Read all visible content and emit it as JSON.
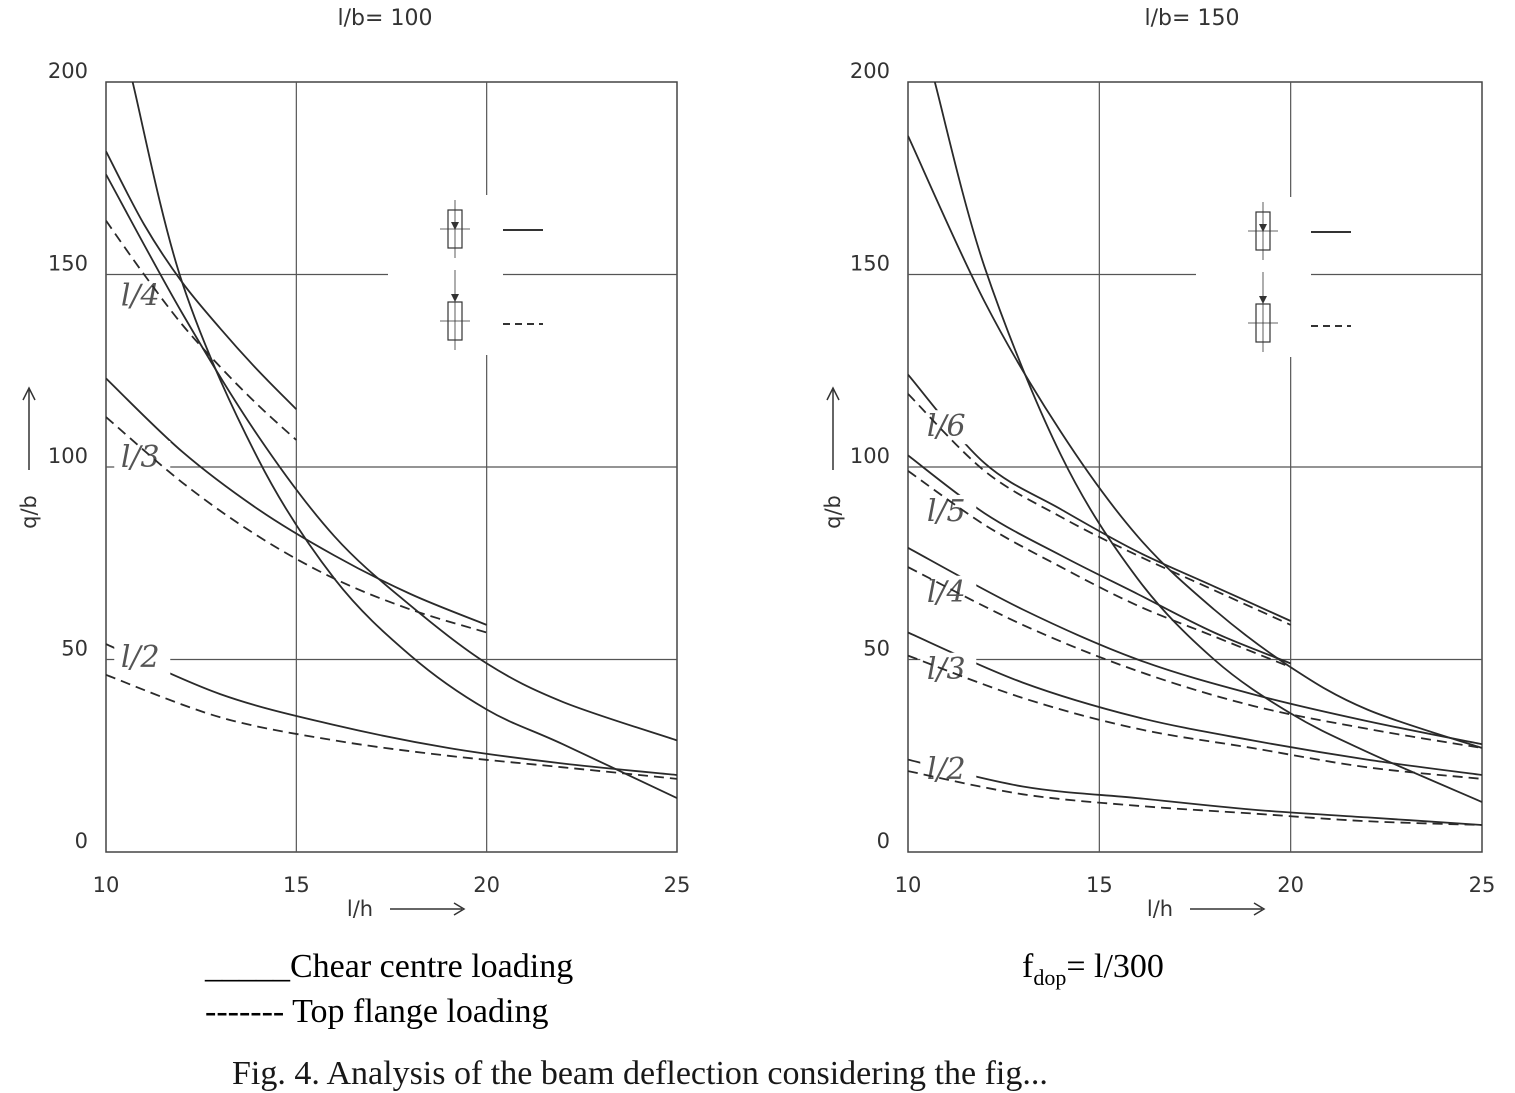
{
  "legend": {
    "solid_label": "_____Chear centre loading",
    "dashed_label": "------- Top flange loading",
    "fdop_prefix": "f",
    "fdop_sub": "dop",
    "fdop_suffix": "= l/300"
  },
  "figure_caption": "Fig. 4. Analysis of the beam deflection considering the fig...",
  "chart_data": [
    {
      "type": "line",
      "title": "l/b= 100",
      "xlabel": "l/h",
      "ylabel": "q/b",
      "xlim": [
        10,
        25
      ],
      "ylim": [
        0,
        200
      ],
      "xticks": [
        "10",
        "15",
        "20",
        "25"
      ],
      "yticks": [
        "0",
        "50",
        "100",
        "150",
        "200"
      ],
      "grid": true,
      "legend_position": "top-right",
      "series": [
        {
          "label": "l/4",
          "style": "solid",
          "points": [
            [
              10.0,
              182
            ],
            [
              11.0,
              163
            ],
            [
              12.0,
              148
            ],
            [
              13.0,
              136
            ],
            [
              14.0,
              125
            ],
            [
              15.0,
              115
            ]
          ]
        },
        {
          "label": "l/4",
          "style": "dashed",
          "points": [
            [
              10.0,
              164
            ],
            [
              11.0,
              150
            ],
            [
              12.0,
              137
            ],
            [
              13.0,
              126
            ],
            [
              14.0,
              116
            ],
            [
              15.0,
              107
            ]
          ]
        },
        {
          "label": "l/3",
          "style": "solid",
          "points": [
            [
              10.0,
              123
            ],
            [
              12.0,
              104
            ],
            [
              14.0,
              89
            ],
            [
              16.0,
              77
            ],
            [
              18.0,
              67
            ],
            [
              20.0,
              59
            ]
          ]
        },
        {
          "label": "l/3",
          "style": "dashed",
          "points": [
            [
              10.0,
              113
            ],
            [
              12.0,
              96
            ],
            [
              14.0,
              82
            ],
            [
              16.0,
              71
            ],
            [
              18.0,
              63
            ],
            [
              20.0,
              57
            ]
          ]
        },
        {
          "label": "l/2",
          "style": "solid",
          "points": [
            [
              10.0,
              54
            ],
            [
              13.0,
              41
            ],
            [
              16.0,
              33
            ],
            [
              19.0,
              27
            ],
            [
              22.0,
              23
            ],
            [
              25.0,
              20
            ]
          ]
        },
        {
          "label": "l/2",
          "style": "dashed",
          "points": [
            [
              10.0,
              46
            ],
            [
              13.0,
              35
            ],
            [
              16.0,
              29
            ],
            [
              19.0,
              25
            ],
            [
              22.0,
              22
            ],
            [
              25.0,
              19
            ]
          ]
        },
        {
          "label": "",
          "style": "solid",
          "points": [
            [
              10.7,
              200
            ],
            [
              12.0,
              148
            ],
            [
              14.0,
              102
            ],
            [
              16.0,
              71
            ],
            [
              18.0,
              51
            ],
            [
              20.0,
              37
            ],
            [
              22.0,
              28
            ],
            [
              25.0,
              14
            ]
          ]
        },
        {
          "label": "",
          "style": "solid",
          "points": [
            [
              10.0,
              176
            ],
            [
              12.0,
              140
            ],
            [
              14.0,
              108
            ],
            [
              16.0,
              82
            ],
            [
              18.0,
              64
            ],
            [
              20.0,
              49
            ],
            [
              22.0,
              39
            ],
            [
              25.0,
              29
            ]
          ]
        }
      ]
    },
    {
      "type": "line",
      "title": "l/b= 150",
      "xlabel": "l/h",
      "ylabel": "q/b",
      "xlim": [
        10,
        25
      ],
      "ylim": [
        0,
        200
      ],
      "xticks": [
        "10",
        "15",
        "20",
        "25"
      ],
      "yticks": [
        "0",
        "50",
        "100",
        "150",
        "200"
      ],
      "grid": true,
      "legend_position": "top-right",
      "series": [
        {
          "label": "l/6",
          "style": "solid",
          "points": [
            [
              10.0,
              124
            ],
            [
              12.0,
              101
            ],
            [
              14.0,
              89
            ],
            [
              16.0,
              78
            ],
            [
              18.0,
              69
            ],
            [
              20.0,
              60
            ]
          ]
        },
        {
          "label": "l/6",
          "style": "dashed",
          "points": [
            [
              10.0,
              119
            ],
            [
              12.0,
              99
            ],
            [
              14.0,
              87
            ],
            [
              16.0,
              77
            ],
            [
              18.0,
              68
            ],
            [
              20.0,
              59
            ]
          ]
        },
        {
          "label": "l/5",
          "style": "solid",
          "points": [
            [
              10.0,
              103
            ],
            [
              12.0,
              88
            ],
            [
              14.0,
              77
            ],
            [
              16.0,
              67
            ],
            [
              18.0,
              57
            ],
            [
              20.0,
              49
            ]
          ]
        },
        {
          "label": "l/5",
          "style": "dashed",
          "points": [
            [
              10.0,
              99
            ],
            [
              12.0,
              85
            ],
            [
              14.0,
              74
            ],
            [
              16.0,
              64
            ],
            [
              18.0,
              56
            ],
            [
              20.0,
              48
            ]
          ]
        },
        {
          "label": "l/4",
          "style": "solid",
          "points": [
            [
              10.0,
              79
            ],
            [
              13.0,
              63
            ],
            [
              16.0,
              50
            ],
            [
              19.0,
              41
            ],
            [
              22.0,
              34
            ],
            [
              25.0,
              28
            ]
          ]
        },
        {
          "label": "l/4",
          "style": "dashed",
          "points": [
            [
              10.0,
              74
            ],
            [
              13.0,
              59
            ],
            [
              16.0,
              47
            ],
            [
              19.0,
              38
            ],
            [
              22.0,
              32
            ],
            [
              25.0,
              27
            ]
          ]
        },
        {
          "label": "l/3",
          "style": "solid",
          "points": [
            [
              10.0,
              57
            ],
            [
              13.0,
              44
            ],
            [
              16.0,
              35
            ],
            [
              19.0,
              29
            ],
            [
              22.0,
              24
            ],
            [
              25.0,
              20
            ]
          ]
        },
        {
          "label": "l/3",
          "style": "dashed",
          "points": [
            [
              10.0,
              51
            ],
            [
              13.0,
              40
            ],
            [
              16.0,
              32
            ],
            [
              19.0,
              27
            ],
            [
              22.0,
              22
            ],
            [
              25.0,
              19
            ]
          ]
        },
        {
          "label": "l/2",
          "style": "solid",
          "points": [
            [
              10.0,
              24
            ],
            [
              13.0,
              17
            ],
            [
              16.0,
              14
            ],
            [
              19.0,
              11
            ],
            [
              22.0,
              9
            ],
            [
              25.0,
              7
            ]
          ]
        },
        {
          "label": "l/2",
          "style": "dashed",
          "points": [
            [
              10.0,
              21
            ],
            [
              13.0,
              15
            ],
            [
              16.0,
              12
            ],
            [
              19.0,
              10
            ],
            [
              22.0,
              8
            ],
            [
              25.0,
              7
            ]
          ]
        },
        {
          "label": "",
          "style": "solid",
          "points": [
            [
              10.7,
              200
            ],
            [
              12.0,
              152
            ],
            [
              14.0,
              103
            ],
            [
              16.0,
              71
            ],
            [
              18.0,
              50
            ],
            [
              20.0,
              36
            ],
            [
              22.0,
              26
            ],
            [
              25.0,
              13
            ]
          ]
        },
        {
          "label": "",
          "style": "solid",
          "points": [
            [
              10.0,
              186
            ],
            [
              12.0,
              143
            ],
            [
              14.0,
              109
            ],
            [
              16.0,
              82
            ],
            [
              18.0,
              63
            ],
            [
              20.0,
              48
            ],
            [
              22.0,
              37
            ],
            [
              25.0,
              27
            ]
          ]
        }
      ]
    }
  ]
}
